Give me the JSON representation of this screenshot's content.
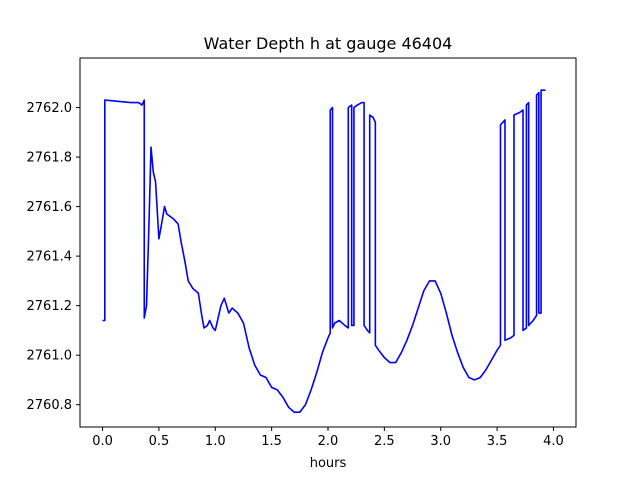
{
  "chart_data": {
    "type": "line",
    "title": "Water Depth h at gauge 46404",
    "xlabel": "hours",
    "ylabel": "",
    "xlim": [
      -0.2,
      4.2
    ],
    "ylim": [
      2760.71,
      2762.2
    ],
    "grid": false,
    "x_ticks": [
      0.0,
      0.5,
      1.0,
      1.5,
      2.0,
      2.5,
      3.0,
      3.5,
      4.0
    ],
    "x_tick_labels": [
      "0.0",
      "0.5",
      "1.0",
      "1.5",
      "2.0",
      "2.5",
      "3.0",
      "3.5",
      "4.0"
    ],
    "y_ticks": [
      2760.8,
      2761.0,
      2761.2,
      2761.4,
      2761.6,
      2761.8,
      2762.0
    ],
    "y_tick_labels": [
      "2760.8",
      "2761.0",
      "2761.2",
      "2761.4",
      "2761.6",
      "2761.8",
      "2762.0"
    ],
    "series": [
      {
        "color": "#0000ff",
        "points": [
          [
            0.0,
            2761.14
          ],
          [
            0.02,
            2761.14
          ],
          [
            0.02,
            2762.03
          ],
          [
            0.25,
            2762.02
          ],
          [
            0.32,
            2762.02
          ],
          [
            0.35,
            2762.01
          ],
          [
            0.37,
            2762.03
          ],
          [
            0.37,
            2761.15
          ],
          [
            0.39,
            2761.2
          ],
          [
            0.41,
            2761.5
          ],
          [
            0.43,
            2761.84
          ],
          [
            0.45,
            2761.74
          ],
          [
            0.47,
            2761.7
          ],
          [
            0.5,
            2761.47
          ],
          [
            0.52,
            2761.52
          ],
          [
            0.55,
            2761.6
          ],
          [
            0.57,
            2761.57
          ],
          [
            0.6,
            2761.56
          ],
          [
            0.63,
            2761.55
          ],
          [
            0.67,
            2761.53
          ],
          [
            0.7,
            2761.45
          ],
          [
            0.73,
            2761.38
          ],
          [
            0.76,
            2761.3
          ],
          [
            0.8,
            2761.27
          ],
          [
            0.85,
            2761.25
          ],
          [
            0.88,
            2761.16
          ],
          [
            0.9,
            2761.11
          ],
          [
            0.93,
            2761.12
          ],
          [
            0.95,
            2761.14
          ],
          [
            0.98,
            2761.11
          ],
          [
            1.0,
            2761.1
          ],
          [
            1.05,
            2761.2
          ],
          [
            1.08,
            2761.23
          ],
          [
            1.1,
            2761.2
          ],
          [
            1.12,
            2761.17
          ],
          [
            1.15,
            2761.19
          ],
          [
            1.2,
            2761.17
          ],
          [
            1.25,
            2761.13
          ],
          [
            1.3,
            2761.03
          ],
          [
            1.35,
            2760.96
          ],
          [
            1.4,
            2760.92
          ],
          [
            1.45,
            2760.91
          ],
          [
            1.5,
            2760.87
          ],
          [
            1.55,
            2760.86
          ],
          [
            1.6,
            2760.83
          ],
          [
            1.65,
            2760.79
          ],
          [
            1.7,
            2760.77
          ],
          [
            1.75,
            2760.77
          ],
          [
            1.8,
            2760.8
          ],
          [
            1.85,
            2760.86
          ],
          [
            1.9,
            2760.93
          ],
          [
            1.95,
            2761.01
          ],
          [
            2.0,
            2761.07
          ],
          [
            2.02,
            2761.09
          ],
          [
            2.02,
            2761.99
          ],
          [
            2.04,
            2762.0
          ],
          [
            2.04,
            2761.11
          ],
          [
            2.06,
            2761.13
          ],
          [
            2.1,
            2761.14
          ],
          [
            2.15,
            2761.12
          ],
          [
            2.18,
            2761.11
          ],
          [
            2.18,
            2762.0
          ],
          [
            2.21,
            2762.01
          ],
          [
            2.21,
            2761.12
          ],
          [
            2.23,
            2761.12
          ],
          [
            2.23,
            2762.0
          ],
          [
            2.26,
            2762.01
          ],
          [
            2.3,
            2762.02
          ],
          [
            2.32,
            2762.02
          ],
          [
            2.32,
            2761.12
          ],
          [
            2.35,
            2761.1
          ],
          [
            2.37,
            2761.09
          ],
          [
            2.37,
            2761.97
          ],
          [
            2.4,
            2761.96
          ],
          [
            2.42,
            2761.94
          ],
          [
            2.42,
            2761.04
          ],
          [
            2.45,
            2761.02
          ],
          [
            2.5,
            2760.99
          ],
          [
            2.55,
            2760.97
          ],
          [
            2.6,
            2760.97
          ],
          [
            2.65,
            2761.01
          ],
          [
            2.7,
            2761.06
          ],
          [
            2.75,
            2761.12
          ],
          [
            2.8,
            2761.19
          ],
          [
            2.85,
            2761.26
          ],
          [
            2.9,
            2761.3
          ],
          [
            2.95,
            2761.3
          ],
          [
            3.0,
            2761.25
          ],
          [
            3.05,
            2761.17
          ],
          [
            3.1,
            2761.08
          ],
          [
            3.15,
            2761.01
          ],
          [
            3.2,
            2760.95
          ],
          [
            3.25,
            2760.91
          ],
          [
            3.3,
            2760.9
          ],
          [
            3.35,
            2760.91
          ],
          [
            3.4,
            2760.94
          ],
          [
            3.45,
            2760.98
          ],
          [
            3.5,
            2761.02
          ],
          [
            3.53,
            2761.04
          ],
          [
            3.53,
            2761.93
          ],
          [
            3.57,
            2761.95
          ],
          [
            3.57,
            2761.06
          ],
          [
            3.62,
            2761.07
          ],
          [
            3.65,
            2761.08
          ],
          [
            3.65,
            2761.97
          ],
          [
            3.7,
            2761.98
          ],
          [
            3.73,
            2761.99
          ],
          [
            3.73,
            2761.1
          ],
          [
            3.76,
            2761.11
          ],
          [
            3.76,
            2762.01
          ],
          [
            3.78,
            2762.02
          ],
          [
            3.78,
            2761.12
          ],
          [
            3.82,
            2761.14
          ],
          [
            3.85,
            2761.16
          ],
          [
            3.85,
            2762.05
          ],
          [
            3.87,
            2762.06
          ],
          [
            3.87,
            2761.17
          ],
          [
            3.89,
            2761.17
          ],
          [
            3.89,
            2762.07
          ],
          [
            3.93,
            2762.07
          ]
        ]
      }
    ]
  }
}
